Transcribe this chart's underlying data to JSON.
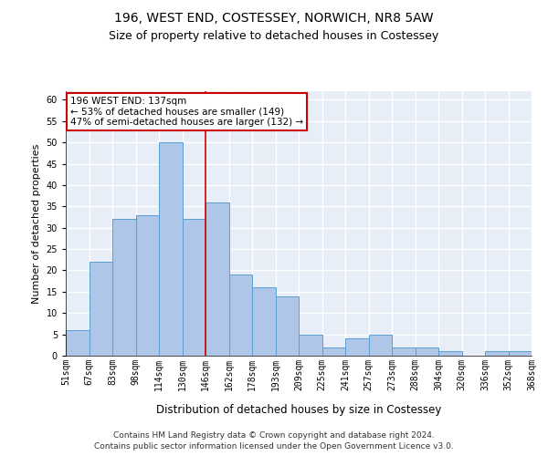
{
  "title1": "196, WEST END, COSTESSEY, NORWICH, NR8 5AW",
  "title2": "Size of property relative to detached houses in Costessey",
  "xlabel": "Distribution of detached houses by size in Costessey",
  "ylabel": "Number of detached properties",
  "bar_values": [
    6,
    22,
    32,
    33,
    50,
    32,
    36,
    19,
    16,
    14,
    5,
    2,
    4,
    5,
    2,
    2,
    1,
    0,
    1,
    1
  ],
  "bin_labels": [
    "51sqm",
    "67sqm",
    "83sqm",
    "98sqm",
    "114sqm",
    "130sqm",
    "146sqm",
    "162sqm",
    "178sqm",
    "193sqm",
    "209sqm",
    "225sqm",
    "241sqm",
    "257sqm",
    "273sqm",
    "288sqm",
    "304sqm",
    "320sqm",
    "336sqm",
    "352sqm",
    "368sqm"
  ],
  "bar_color": "#aec6e8",
  "bar_edge_color": "#5a9fd4",
  "bg_color": "#e8eef8",
  "grid_color": "#ffffff",
  "vline_color": "#cc0000",
  "annotation_line1": "196 WEST END: 137sqm",
  "annotation_line2": "← 53% of detached houses are smaller (149)",
  "annotation_line3": "47% of semi-detached houses are larger (132) →",
  "annotation_box_color": "#ffffff",
  "annotation_box_edge": "#cc0000",
  "ylim": [
    0,
    62
  ],
  "yticks": [
    0,
    5,
    10,
    15,
    20,
    25,
    30,
    35,
    40,
    45,
    50,
    55,
    60
  ],
  "footer1": "Contains HM Land Registry data © Crown copyright and database right 2024.",
  "footer2": "Contains public sector information licensed under the Open Government Licence v3.0.",
  "title1_fontsize": 10,
  "title2_fontsize": 9,
  "xlabel_fontsize": 8.5,
  "ylabel_fontsize": 8,
  "tick_fontsize": 7,
  "annotation_fontsize": 7.5,
  "footer_fontsize": 6.5
}
